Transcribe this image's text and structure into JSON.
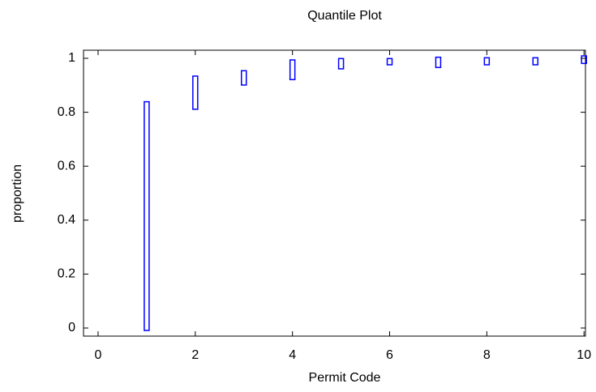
{
  "chart_data": {
    "type": "range",
    "title": "Quantile Plot",
    "x_label": "Permit Code",
    "y_label": "proportion",
    "series": [
      {
        "color": "#0000ff",
        "x": [
          1,
          2,
          3,
          4,
          5,
          6,
          7,
          8,
          9,
          10
        ],
        "low": [
          0,
          0.82,
          0.91,
          0.93,
          0.97,
          0.985,
          0.975,
          0.985,
          0.985,
          0.99
        ],
        "high": [
          0.83,
          0.925,
          0.945,
          0.985,
          0.99,
          0.99,
          0.995,
          0.993,
          0.993,
          1
        ]
      }
    ],
    "xlim": [
      -0.3,
      10.03
    ],
    "xticks": [
      0,
      2,
      4,
      6,
      8,
      10
    ],
    "ylim": [
      -0.03,
      1.03
    ],
    "yticks": [
      0,
      0.2,
      0.4,
      0.6,
      0.8,
      1
    ]
  }
}
